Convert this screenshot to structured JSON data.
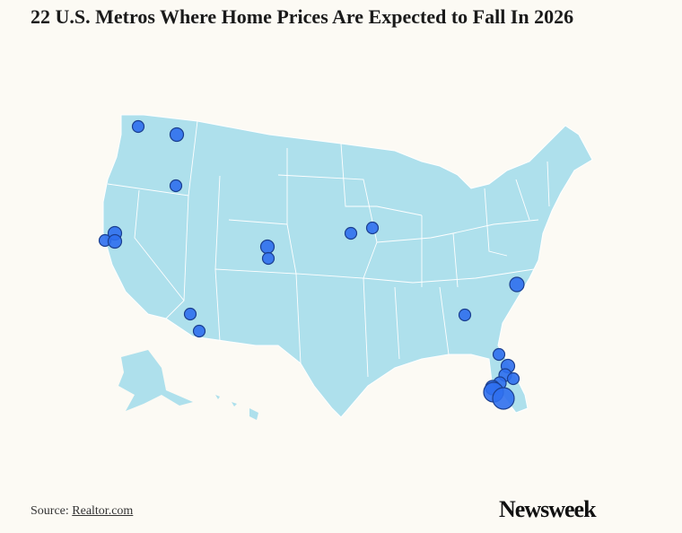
{
  "header": {
    "title": "22 U.S. Metros Where Home Prices Are Expected to Fall In 2026"
  },
  "footer": {
    "source_label": "Source:",
    "source_link": "Realtor.com",
    "logo": "Newsweek"
  }
}
